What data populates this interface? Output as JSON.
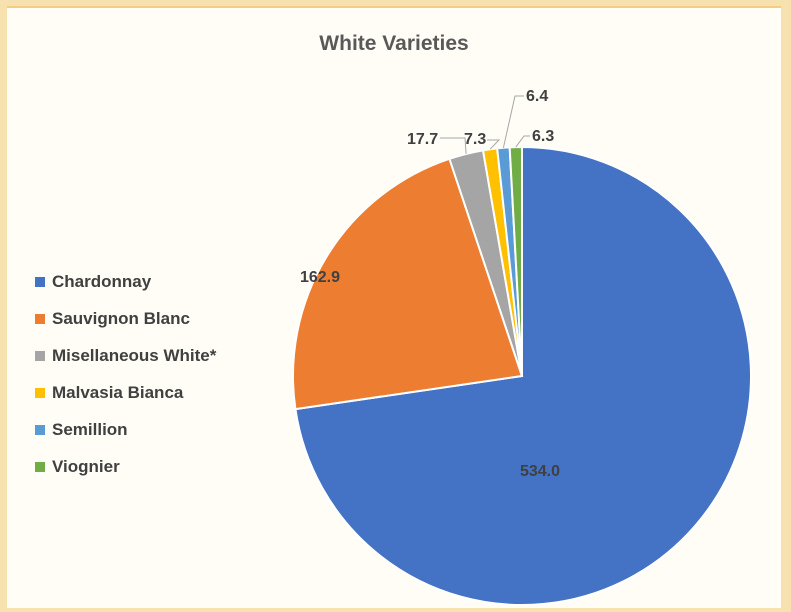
{
  "chart_data": {
    "type": "pie",
    "title": "White Varieties",
    "categories": [
      "Chardonnay",
      "Sauvignon Blanc",
      "Misellaneous White*",
      "Malvasia Bianca",
      "Semillion",
      "Viognier"
    ],
    "values": [
      534.0,
      162.9,
      17.7,
      7.3,
      6.4,
      6.3
    ],
    "data_labels": [
      "534.0",
      "162.9",
      "17.7",
      "7.3",
      "6.4",
      "6.3"
    ],
    "colors": [
      "#4472C4",
      "#ED7D31",
      "#A5A5A5",
      "#FFC000",
      "#5B9BD5",
      "#70AD47"
    ],
    "legend_position": "left",
    "start_angle": "12 o'clock, clockwise"
  }
}
